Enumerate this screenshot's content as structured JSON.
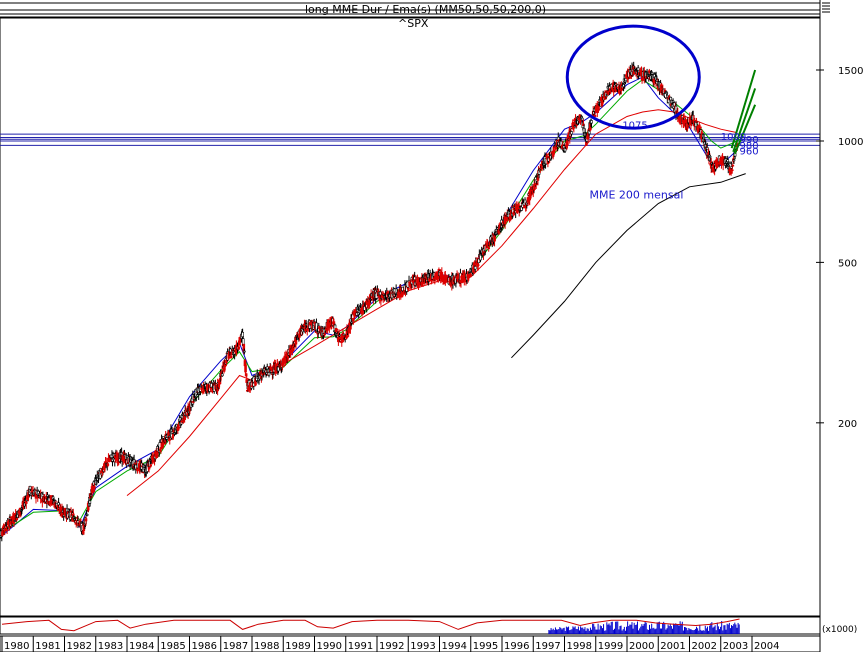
{
  "chart_data": {
    "type": "candlestick",
    "title": "^SPX",
    "legend_overlay": "long MME Dur / Ema(s) (MM50,50,50,200,0)",
    "log_scale": true,
    "y_ticks": [
      1500,
      1000,
      500,
      200
    ],
    "volume_tick_label": "(x1000)",
    "x_labels": [
      "1980",
      "1981",
      "1982",
      "1983",
      "1984",
      "1985",
      "1986",
      "1987",
      "1988",
      "1989",
      "1990",
      "1991",
      "1992",
      "1993",
      "1994",
      "1995",
      "1996",
      "1997",
      "1998",
      "1999",
      "2000",
      "2001",
      "2002",
      "2003",
      "2004"
    ],
    "ylim": [
      170,
      1900
    ],
    "grid": false,
    "series": [
      {
        "kind": "price",
        "color": "#000000",
        "x": [
          1979.9,
          1980.2,
          1980.6,
          1980.9,
          1981.2,
          1981.6,
          1981.9,
          1982.3,
          1982.6,
          1982.9,
          1983.2,
          1983.5,
          1983.9,
          1984.3,
          1984.6,
          1984.9,
          1985.2,
          1985.5,
          1985.9,
          1986.2,
          1986.5,
          1986.9,
          1987.2,
          1987.5,
          1987.7,
          1987.85,
          1988.0,
          1988.3,
          1988.6,
          1988.9,
          1989.2,
          1989.5,
          1989.75,
          1989.95,
          1990.25,
          1990.55,
          1990.8,
          1991.0,
          1991.3,
          1991.6,
          1991.9,
          1992.2,
          1992.5,
          1992.8,
          1993.1,
          1993.4,
          1993.7,
          1994.0,
          1994.3,
          1994.6,
          1994.9,
          1995.2,
          1995.5,
          1995.8,
          1996.1,
          1996.4,
          1996.7,
          1997.0,
          1997.3,
          1997.6,
          1997.8,
          1998.0,
          1998.3,
          1998.55,
          1998.7,
          1998.9,
          1999.2,
          1999.5,
          1999.8,
          2000.0,
          2000.25,
          2000.5,
          2000.75,
          2000.95,
          2001.2,
          2001.4,
          2001.7,
          2001.9,
          2002.1,
          2002.35,
          2002.55,
          2002.75,
          2002.95,
          2003.15,
          2003.35,
          2003.55
        ],
        "y": [
          105,
          112,
          121,
          136,
          131,
          129,
          121,
          117,
          109,
          138,
          152,
          164,
          164,
          157,
          153,
          166,
          182,
          190,
          211,
          236,
          245,
          245,
          292,
          305,
          330,
          247,
          250,
          265,
          270,
          276,
          297,
          332,
          349,
          350,
          334,
          359,
          322,
          330,
          375,
          388,
          417,
          412,
          418,
          422,
          446,
          450,
          460,
          470,
          448,
          456,
          462,
          500,
          545,
          585,
          640,
          676,
          690,
          765,
          880,
          925,
          1000,
          960,
          1100,
          1140,
          995,
          1160,
          1260,
          1370,
          1340,
          1460,
          1500,
          1450,
          1460,
          1400,
          1320,
          1250,
          1140,
          1100,
          1140,
          1060,
          950,
          850,
          900,
          890,
          850,
          1000
        ]
      },
      {
        "kind": "ema",
        "color": "#0000cc",
        "x": [
          1980.0,
          1981.0,
          1982.0,
          1982.5,
          1983.0,
          1984.0,
          1985.0,
          1986.0,
          1987.0,
          1987.6,
          1988.0,
          1989.0,
          1990.0,
          1990.6,
          1991.0,
          1992.0,
          1993.0,
          1994.0,
          1994.8,
          1995.0,
          1996.0,
          1997.0,
          1998.0,
          1998.6,
          1999.0,
          2000.0,
          2000.5,
          2001.0,
          2002.0,
          2002.7,
          2003.0,
          2003.4,
          2003.6
        ],
        "y": [
          105,
          122,
          121,
          110,
          138,
          156,
          172,
          232,
          285,
          315,
          262,
          282,
          338,
          330,
          345,
          408,
          446,
          468,
          453,
          480,
          630,
          845,
          1070,
          1120,
          1175,
          1380,
          1440,
          1280,
          1080,
          880,
          870,
          930,
          990
        ]
      },
      {
        "kind": "ema",
        "color": "#00aa00",
        "x": [
          1980.0,
          1981.0,
          1982.0,
          1982.5,
          1983.0,
          1984.0,
          1985.0,
          1986.0,
          1987.0,
          1987.6,
          1988.0,
          1989.0,
          1990.0,
          1990.6,
          1991.0,
          1992.0,
          1993.0,
          1994.0,
          1994.8,
          1995.0,
          1996.0,
          1997.0,
          1998.0,
          1998.6,
          1999.0,
          2000.0,
          2000.5,
          2001.0,
          2002.0,
          2002.7,
          2003.0,
          2003.4,
          2003.6
        ],
        "y": [
          107,
          120,
          121,
          115,
          135,
          152,
          165,
          220,
          270,
          300,
          268,
          275,
          325,
          327,
          340,
          400,
          440,
          463,
          452,
          474,
          600,
          800,
          1000,
          1030,
          1100,
          1330,
          1420,
          1340,
          1160,
          1000,
          960,
          990,
          1010
        ]
      },
      {
        "kind": "ema",
        "color": "#e00000",
        "x": [
          1984.0,
          1985.0,
          1986.0,
          1987.0,
          1987.6,
          1988.0,
          1989.0,
          1990.0,
          1991.0,
          1992.0,
          1993.0,
          1994.0,
          1995.0,
          1996.0,
          1997.0,
          1998.0,
          1999.0,
          2000.0,
          2000.5,
          2001.0,
          2001.5,
          2002.0,
          2002.5,
          2003.0,
          2003.5
        ],
        "y": [
          132,
          152,
          185,
          230,
          262,
          255,
          280,
          310,
          345,
          383,
          425,
          450,
          460,
          550,
          680,
          850,
          1040,
          1150,
          1180,
          1195,
          1180,
          1140,
          1100,
          1070,
          1050
        ]
      },
      {
        "kind": "ema200_monthly",
        "name": "MME 200 mensal",
        "color": "#000000",
        "x": [
          1996.3,
          1997.0,
          1998.0,
          1999.0,
          2000.0,
          2001.0,
          2002.0,
          2003.0,
          2003.8
        ],
        "y": [
          290,
          330,
          400,
          500,
          600,
          700,
          770,
          790,
          830
        ]
      }
    ],
    "horizontal_levels": [
      {
        "value": 1040,
        "label": ""
      },
      {
        "value": 1020,
        "label": ""
      },
      {
        "value": 1010,
        "label": ""
      },
      {
        "value": 1000,
        "label": ""
      },
      {
        "value": 975,
        "label": ""
      }
    ],
    "annotations": [
      {
        "text": "1075",
        "x": 1999.85,
        "y": 1075
      },
      {
        "text": "1000",
        "x": 2003.0,
        "y": 1005
      },
      {
        "text": "990",
        "x": 2003.6,
        "y": 990
      },
      {
        "text": "980",
        "x": 2003.6,
        "y": 955
      },
      {
        "text": "960",
        "x": 2003.6,
        "y": 925
      },
      {
        "text": "MME 200 mensal",
        "x": 1998.8,
        "y": 720
      }
    ],
    "trendlines": [
      {
        "color": "#008000",
        "from": [
          2003.35,
          960
        ],
        "to": [
          2004.1,
          1500
        ]
      },
      {
        "color": "#008000",
        "from": [
          2003.4,
          940
        ],
        "to": [
          2004.1,
          1350
        ]
      },
      {
        "color": "#008000",
        "from": [
          2003.45,
          930
        ],
        "to": [
          2004.1,
          1230
        ]
      }
    ],
    "highlight_ellipse": {
      "center": [
        2000.2,
        1440
      ],
      "label": ""
    },
    "indicator_panel": {
      "color": "#cc0000",
      "x": [
        1980.0,
        1980.8,
        1981.5,
        1981.9,
        1982.3,
        1983.0,
        1983.7,
        1984.1,
        1984.6,
        1985.5,
        1986.5,
        1987.3,
        1987.7,
        1988.2,
        1989.0,
        1989.7,
        1990.1,
        1990.6,
        1991.2,
        1992.0,
        1993.0,
        1994.0,
        1994.6,
        1995.2,
        1996.0,
        1997.0,
        1997.9,
        1998.5,
        1998.9,
        1999.5,
        2000.3,
        2000.9,
        2001.5,
        2002.2,
        2002.7,
        2003.2,
        2003.6
      ],
      "y": [
        0.6,
        0.8,
        0.9,
        0.2,
        0.1,
        0.8,
        0.9,
        0.3,
        0.6,
        0.9,
        0.9,
        0.9,
        0.2,
        0.6,
        0.9,
        0.9,
        0.4,
        0.3,
        0.8,
        0.9,
        0.9,
        0.8,
        0.2,
        0.7,
        0.9,
        0.9,
        0.9,
        0.5,
        0.7,
        0.9,
        0.9,
        0.7,
        0.6,
        0.5,
        0.6,
        0.8,
        1.0
      ]
    },
    "volume_panel": {
      "color": "#0000cc",
      "start_year": 1997.5,
      "end_year": 2003.6
    }
  }
}
